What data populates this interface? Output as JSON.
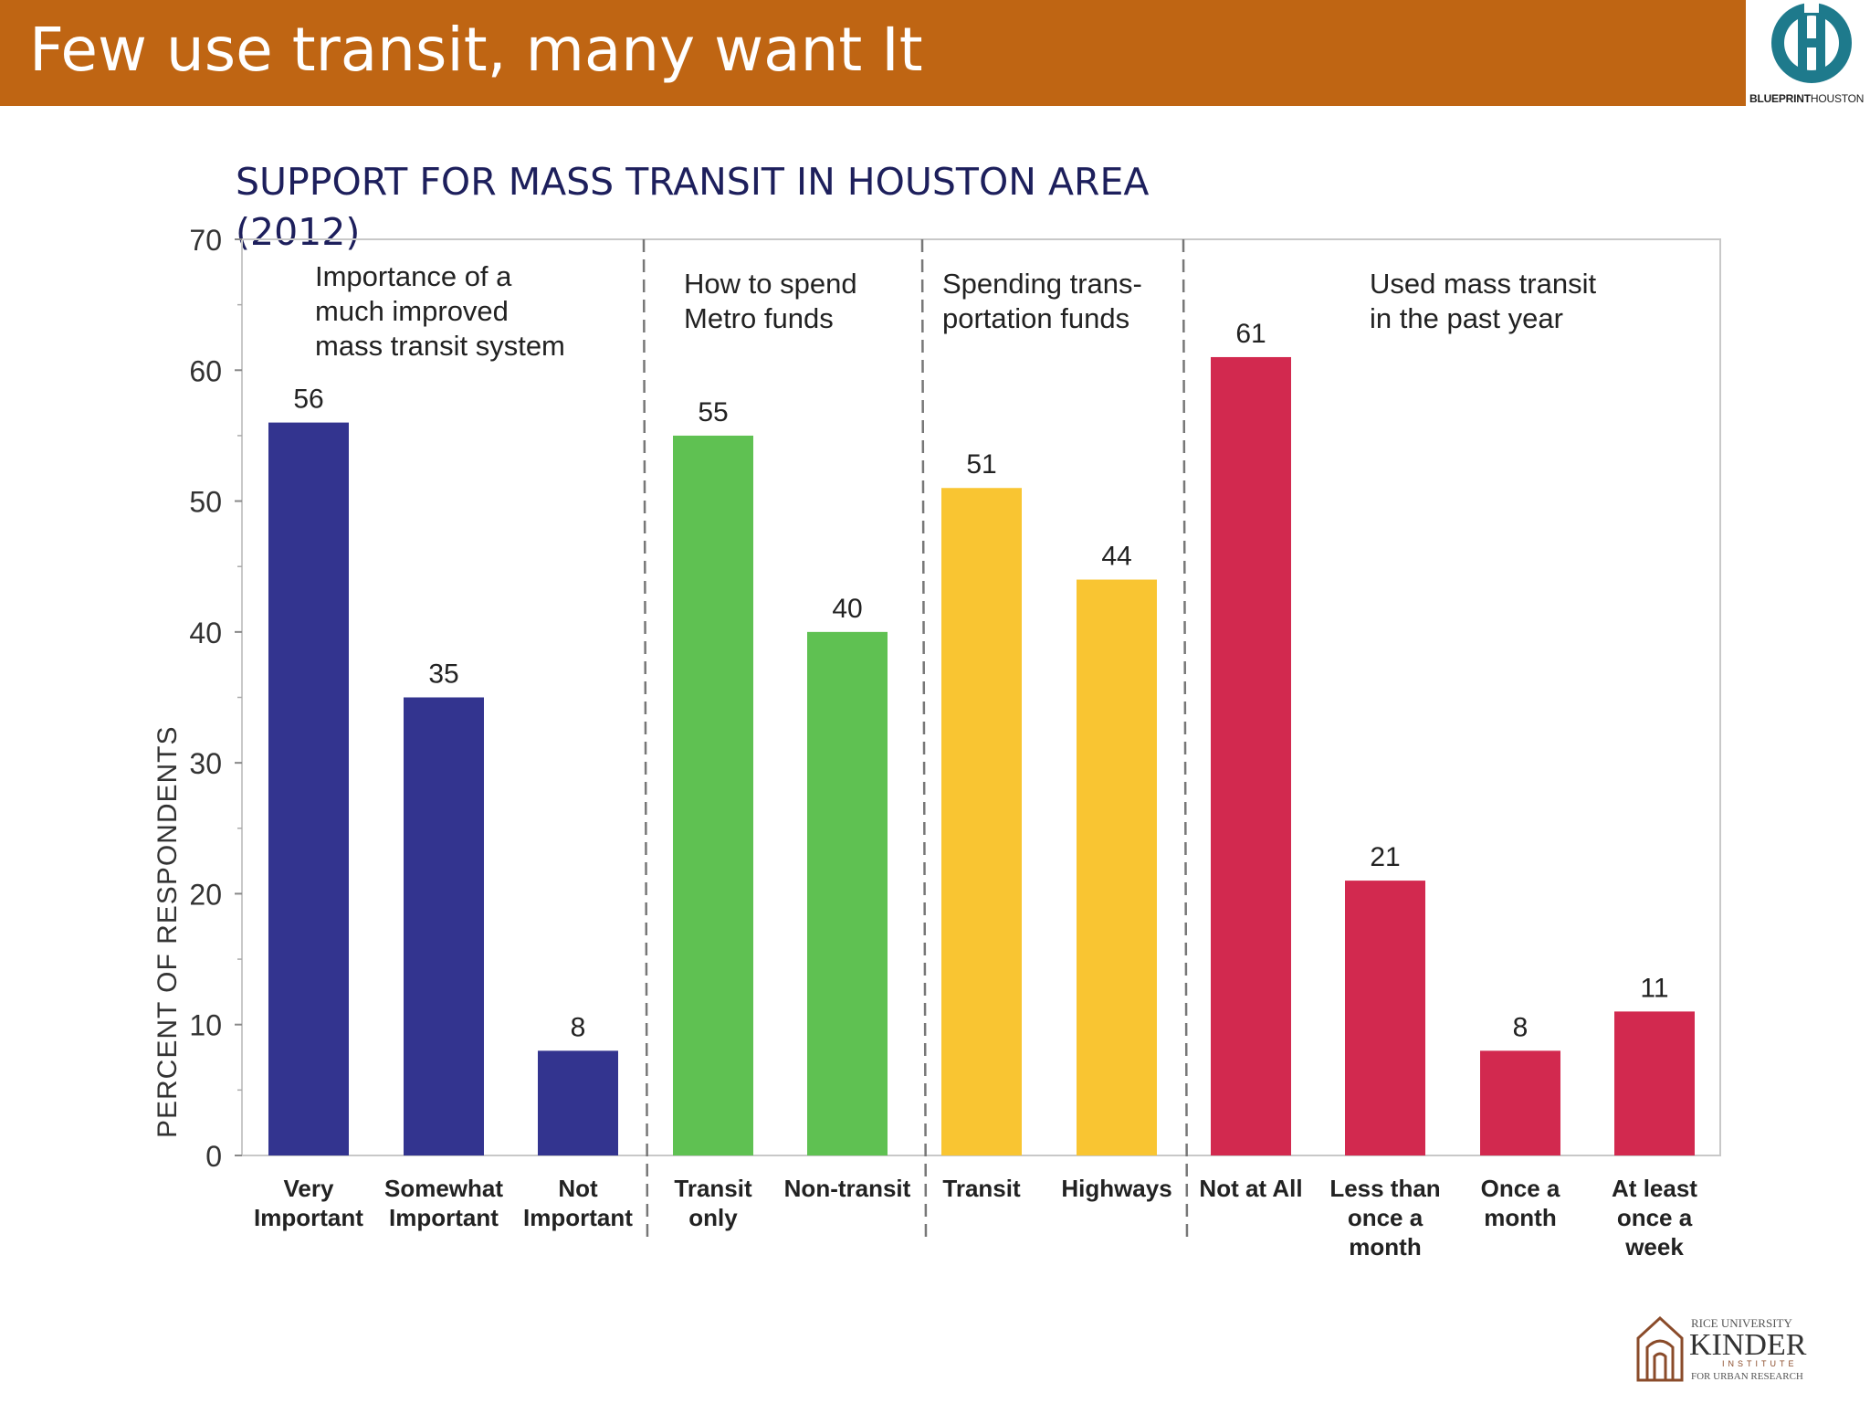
{
  "slide": {
    "title": "Few use transit, many want It"
  },
  "logos": {
    "top_right": {
      "bold": "BLUEPRINT",
      "regular": "HOUSTON"
    },
    "bottom_right": {
      "line1": "RICE UNIVERSITY",
      "line2": "KINDER",
      "line3": "INSTITUTE",
      "line4": "FOR URBAN RESEARCH"
    }
  },
  "colors": {
    "title_bar": "#bf6513",
    "importance": "#33348f",
    "metro_funds": "#5fc152",
    "transportation_funds": "#f9c532",
    "transit_use": "#d2294f"
  },
  "chart_data": {
    "type": "bar",
    "title": "SUPPORT FOR MASS TRANSIT IN HOUSTON AREA (2012)",
    "ylabel": "PERCENT OF RESPONDENTS",
    "ylim": [
      0,
      70
    ],
    "yticks": [
      0,
      10,
      20,
      30,
      40,
      50,
      60,
      70
    ],
    "groups": [
      {
        "label": "Importance of a much improved mass transit system",
        "label_lines": [
          "Importance of a",
          "much improved",
          "mass transit system"
        ],
        "color": "#33348f",
        "bars": [
          {
            "category": "Very Important",
            "category_lines": [
              "Very",
              "Important"
            ],
            "value": 56
          },
          {
            "category": "Somewhat Important",
            "category_lines": [
              "Somewhat",
              "Important"
            ],
            "value": 35
          },
          {
            "category": "Not Important",
            "category_lines": [
              "Not",
              "Important"
            ],
            "value": 8
          }
        ]
      },
      {
        "label": "How to spend Metro funds",
        "label_lines": [
          "How to spend",
          "Metro funds"
        ],
        "color": "#5fc152",
        "bars": [
          {
            "category": "Transit only",
            "category_lines": [
              "Transit",
              "only"
            ],
            "value": 55
          },
          {
            "category": "Non-transit",
            "category_lines": [
              "Non-transit"
            ],
            "value": 40
          }
        ]
      },
      {
        "label": "Spending trans-portation funds",
        "label_lines": [
          "Spending trans-",
          "portation funds"
        ],
        "color": "#f9c532",
        "bars": [
          {
            "category": "Transit",
            "category_lines": [
              "Transit"
            ],
            "value": 51
          },
          {
            "category": "Highways",
            "category_lines": [
              "Highways"
            ],
            "value": 44
          }
        ]
      },
      {
        "label": "Used mass transit in the past year",
        "label_lines": [
          "Used mass transit",
          "in the past year"
        ],
        "color": "#d2294f",
        "bars": [
          {
            "category": "Not at All",
            "category_lines": [
              "Not at All"
            ],
            "value": 61
          },
          {
            "category": "Less than once a month",
            "category_lines": [
              "Less than",
              "once a",
              "month"
            ],
            "value": 21
          },
          {
            "category": "Once a month",
            "category_lines": [
              "Once a",
              "month"
            ],
            "value": 8
          },
          {
            "category": "At least once a week",
            "category_lines": [
              "At least",
              "once a",
              "week"
            ],
            "value": 11
          }
        ]
      }
    ]
  }
}
